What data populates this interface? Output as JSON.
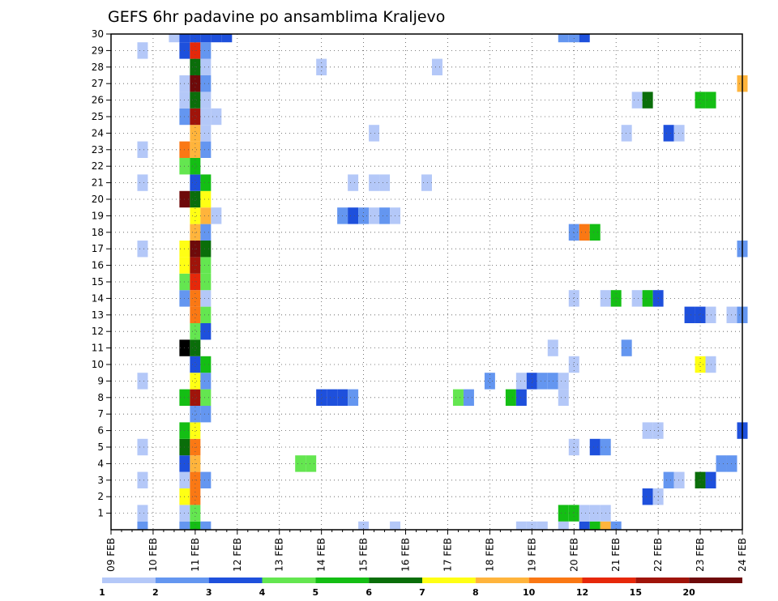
{
  "chart_data": {
    "type": "heatmap",
    "title": "GEFS 6hr padavine po ansamblima Kraljevo",
    "xlabel": "",
    "ylabel": "",
    "x_ticks": [
      "09 FEB",
      "10 FEB",
      "11 FEB",
      "12 FEB",
      "13 FEB",
      "14 FEB",
      "15 FEB",
      "16 FEB",
      "17 FEB",
      "18 FEB",
      "19 FEB",
      "20 FEB",
      "21 FEB",
      "22 FEB",
      "23 FEB",
      "24 FEB"
    ],
    "y_ticks": [
      "1",
      "2",
      "3",
      "4",
      "5",
      "6",
      "7",
      "8",
      "9",
      "10",
      "11",
      "12",
      "13",
      "14",
      "15",
      "16",
      "17",
      "18",
      "19",
      "20",
      "21",
      "22",
      "23",
      "24",
      "25",
      "26",
      "27",
      "28",
      "29",
      "30"
    ],
    "ylim": [
      0,
      30
    ],
    "grid": true,
    "colorbar": {
      "colors": [
        "#b4c8f8",
        "#6496f0",
        "#1e50dc",
        "#64e650",
        "#14be14",
        "#0a6e0a",
        "#ffff14",
        "#ffb43c",
        "#fa7814",
        "#e6280a",
        "#a0140a",
        "#6e0a0a"
      ],
      "labels": [
        "1",
        "2",
        "3",
        "4",
        "5",
        "6",
        "7",
        "8",
        "10",
        "12",
        "15",
        "20"
      ]
    },
    "cells": [
      [
        0,
        10,
        0
      ],
      [
        0,
        23,
        0
      ],
      [
        0,
        28,
        0
      ],
      [
        0,
        30,
        0
      ],
      [
        1,
        20,
        0
      ],
      [
        1,
        22,
        0
      ],
      [
        1,
        27,
        0
      ],
      [
        2,
        36,
        0
      ],
      [
        2,
        38,
        0
      ],
      [
        2,
        40,
        0
      ],
      [
        2,
        42,
        0
      ],
      [
        2,
        50,
        0
      ],
      [
        2,
        54,
        0
      ],
      [
        2,
        58,
        0
      ],
      [
        2,
        56,
        0
      ],
      [
        2,
        60,
        0
      ],
      [
        2,
        62,
        0
      ],
      [
        2,
        75,
        0
      ],
      [
        2,
        77,
        0
      ],
      [
        2,
        79,
        0
      ],
      [
        2,
        81,
        0
      ],
      [
        2,
        84,
        0
      ],
      [
        2,
        87,
        0
      ],
      [
        2,
        88,
        1
      ],
      [
        1,
        5,
        1
      ],
      [
        1,
        20,
        1
      ],
      [
        1,
        21,
        1
      ],
      [
        1,
        25,
        1
      ],
      [
        1,
        27,
        1
      ],
      [
        1,
        30,
        1
      ],
      [
        1,
        31,
        1
      ],
      [
        1,
        32,
        1
      ],
      [
        1,
        34,
        1
      ],
      [
        1,
        36,
        1
      ],
      [
        1,
        38,
        1
      ],
      [
        1,
        40,
        1
      ],
      [
        1,
        42,
        1
      ],
      [
        1,
        44,
        1
      ],
      [
        1,
        46,
        1
      ],
      [
        1,
        48,
        1
      ],
      [
        1,
        50,
        1
      ],
      [
        0,
        5,
        2
      ],
      [
        0,
        9,
        2
      ],
      [
        0,
        11,
        2
      ],
      [
        0,
        13,
        2
      ],
      [
        0,
        15,
        2
      ],
      [
        0,
        17,
        2
      ],
      [
        0,
        19,
        2
      ]
    ],
    "matrix_rows": {
      "30": [
        [
          6,
          0
        ],
        [
          7,
          2
        ],
        [
          8,
          2
        ],
        [
          9,
          2
        ],
        [
          10,
          2
        ],
        [
          11,
          2
        ],
        [
          43,
          1
        ],
        [
          44,
          1
        ],
        [
          45,
          2
        ]
      ],
      "29": [
        [
          3,
          0
        ],
        [
          7,
          2
        ],
        [
          8,
          9
        ],
        [
          9,
          1
        ]
      ],
      "28": [
        [
          8,
          5
        ],
        [
          9,
          0
        ],
        [
          20,
          0
        ],
        [
          31,
          0
        ]
      ],
      "27": [
        [
          7,
          0
        ],
        [
          8,
          11
        ],
        [
          9,
          1
        ],
        [
          60,
          7
        ]
      ],
      "26": [
        [
          7,
          0
        ],
        [
          8,
          5
        ],
        [
          9,
          0
        ],
        [
          50,
          0
        ],
        [
          51,
          5
        ],
        [
          56,
          4
        ],
        [
          57,
          4
        ]
      ],
      "25": [
        [
          7,
          1
        ],
        [
          8,
          10
        ],
        [
          9,
          0
        ],
        [
          10,
          0
        ]
      ],
      "24": [
        [
          8,
          7
        ],
        [
          9,
          0
        ],
        [
          25,
          0
        ],
        [
          49,
          0
        ],
        [
          53,
          2
        ],
        [
          54,
          0
        ]
      ],
      "23": [
        [
          3,
          0
        ],
        [
          7,
          8
        ],
        [
          8,
          7
        ],
        [
          9,
          1
        ]
      ],
      "22": [
        [
          7,
          3
        ],
        [
          8,
          4
        ]
      ],
      "21": [
        [
          3,
          0
        ],
        [
          8,
          2
        ],
        [
          9,
          4
        ],
        [
          23,
          0
        ],
        [
          25,
          0
        ],
        [
          26,
          0
        ],
        [
          30,
          0
        ]
      ],
      "20": [
        [
          7,
          11
        ],
        [
          8,
          5
        ],
        [
          9,
          6
        ]
      ],
      "19": [
        [
          8,
          6
        ],
        [
          9,
          7
        ],
        [
          10,
          0
        ],
        [
          22,
          1
        ],
        [
          23,
          2
        ],
        [
          24,
          1
        ],
        [
          25,
          0
        ],
        [
          26,
          1
        ],
        [
          27,
          0
        ]
      ],
      "18": [
        [
          8,
          7
        ],
        [
          9,
          1
        ],
        [
          44,
          1
        ],
        [
          45,
          8
        ],
        [
          46,
          4
        ]
      ],
      "17": [
        [
          3,
          0
        ],
        [
          7,
          6
        ],
        [
          8,
          11
        ],
        [
          9,
          5
        ],
        [
          60,
          1
        ]
      ],
      "16": [
        [
          7,
          6
        ],
        [
          8,
          10
        ],
        [
          9,
          3
        ]
      ],
      "15": [
        [
          7,
          3
        ],
        [
          8,
          9
        ],
        [
          9,
          3
        ]
      ],
      "14": [
        [
          7,
          1
        ],
        [
          8,
          8
        ],
        [
          9,
          0
        ],
        [
          44,
          0
        ],
        [
          47,
          0
        ],
        [
          48,
          4
        ],
        [
          50,
          0
        ],
        [
          51,
          4
        ],
        [
          52,
          2
        ]
      ],
      "13": [
        [
          8,
          8
        ],
        [
          9,
          3
        ],
        [
          55,
          2
        ],
        [
          56,
          2
        ],
        [
          57,
          0
        ],
        [
          59,
          0
        ],
        [
          60,
          1
        ]
      ],
      "12": [
        [
          8,
          3
        ],
        [
          9,
          2
        ]
      ],
      "11": [
        [
          7,
          12
        ],
        [
          8,
          5
        ],
        [
          42,
          0
        ],
        [
          49,
          1
        ]
      ],
      "10": [
        [
          8,
          2
        ],
        [
          9,
          4
        ],
        [
          44,
          0
        ],
        [
          56,
          6
        ],
        [
          57,
          0
        ]
      ],
      "9": [
        [
          3,
          0
        ],
        [
          8,
          6
        ],
        [
          9,
          1
        ],
        [
          36,
          1
        ],
        [
          39,
          0
        ],
        [
          40,
          2
        ],
        [
          41,
          1
        ],
        [
          42,
          1
        ],
        [
          43,
          0
        ]
      ],
      "8": [
        [
          7,
          4
        ],
        [
          8,
          10
        ],
        [
          9,
          3
        ],
        [
          20,
          2
        ],
        [
          21,
          2
        ],
        [
          22,
          2
        ],
        [
          23,
          1
        ],
        [
          33,
          3
        ],
        [
          34,
          1
        ],
        [
          38,
          4
        ],
        [
          39,
          2
        ],
        [
          43,
          0
        ]
      ],
      "7": [
        [
          8,
          1
        ],
        [
          9,
          1
        ]
      ],
      "6": [
        [
          7,
          4
        ],
        [
          8,
          6
        ],
        [
          51,
          0
        ],
        [
          52,
          0
        ],
        [
          60,
          2
        ]
      ],
      "5": [
        [
          3,
          0
        ],
        [
          7,
          5
        ],
        [
          8,
          8
        ],
        [
          44,
          0
        ],
        [
          46,
          2
        ],
        [
          47,
          1
        ]
      ],
      "4": [
        [
          7,
          2
        ],
        [
          8,
          7
        ],
        [
          18,
          3
        ],
        [
          19,
          3
        ],
        [
          58,
          1
        ],
        [
          59,
          1
        ]
      ],
      "3": [
        [
          3,
          0
        ],
        [
          7,
          0
        ],
        [
          8,
          8
        ],
        [
          9,
          1
        ],
        [
          53,
          1
        ],
        [
          54,
          0
        ],
        [
          56,
          5
        ],
        [
          57,
          2
        ]
      ],
      "2": [
        [
          7,
          6
        ],
        [
          8,
          8
        ],
        [
          51,
          2
        ],
        [
          52,
          0
        ]
      ],
      "1": [
        [
          3,
          0
        ],
        [
          7,
          0
        ],
        [
          8,
          3
        ],
        [
          43,
          4
        ],
        [
          44,
          4
        ],
        [
          45,
          0
        ],
        [
          46,
          0
        ],
        [
          47,
          0
        ]
      ],
      "0": [
        [
          3,
          1
        ],
        [
          7,
          1
        ],
        [
          8,
          4
        ],
        [
          9,
          1
        ],
        [
          24,
          0
        ],
        [
          27,
          0
        ],
        [
          39,
          0
        ],
        [
          40,
          0
        ],
        [
          41,
          0
        ],
        [
          43,
          0
        ],
        [
          45,
          2
        ],
        [
          46,
          4
        ],
        [
          47,
          7
        ],
        [
          48,
          1
        ]
      ]
    }
  }
}
